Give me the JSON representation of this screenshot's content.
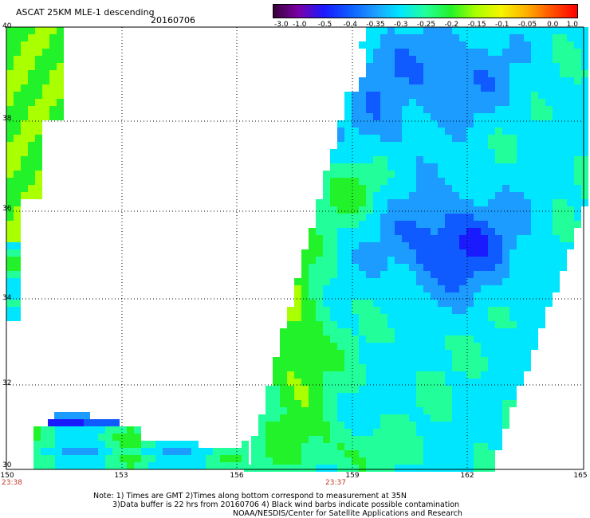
{
  "header": {
    "title": "ASCAT 25KM MLE-1 descending",
    "date": "20160706"
  },
  "colorbar": {
    "ticks": [
      "-3.0",
      "-1.0",
      "-0.5",
      "-0.4",
      "-0.35",
      "-0.3",
      "-0.25",
      "-0.2",
      "-0.15",
      "-0.1",
      "-0.05",
      "0.0",
      "1.0"
    ],
    "colors": [
      "#3a003a",
      "#7a00a8",
      "#1a1aff",
      "#0f5bff",
      "#1c9cff",
      "#00e6ff",
      "#22ff9a",
      "#22f22a",
      "#aaff00",
      "#f5f500",
      "#ffb000",
      "#ff5000",
      "#ff0000"
    ]
  },
  "axes": {
    "lat_labels": [
      "40",
      "38",
      "36",
      "34",
      "32",
      "30"
    ],
    "lon_labels": [
      "150",
      "153",
      "156",
      "159",
      "162",
      "165"
    ],
    "lat_range": [
      30,
      40
    ],
    "lon_range": [
      150,
      165
    ],
    "grid": true
  },
  "time_labels": {
    "left": "23:38",
    "middle": "23:37"
  },
  "notes": {
    "line1": "Note: 1) Times are GMT 2)Times along bottom correspond to measurement at 35N",
    "line2": "3)Data buffer is 22 hrs from 20160706 4) Black wind barbs indicate possible contamination",
    "line3": "NOAA/NESDIS/Center for Satellite Applications and Research"
  }
}
